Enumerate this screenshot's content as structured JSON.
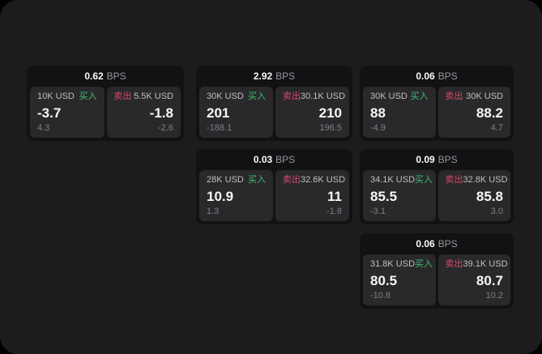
{
  "labels": {
    "bps_unit": "BPS",
    "buy": "买入",
    "sell": "卖出"
  },
  "colors": {
    "buy_green": "#3fbe72",
    "sell_red": "#d9486a",
    "surface": "#1c1c1e",
    "card": "#121214",
    "tile": "#29292b"
  },
  "cards": [
    {
      "row": 0,
      "col": 0,
      "bps": "0.62",
      "buy": {
        "notional": "10K USD",
        "price": "-3.7",
        "delta": "4.3"
      },
      "sell": {
        "notional": "5.5K USD",
        "price": "-1.8",
        "delta": "-2.6"
      }
    },
    {
      "row": 0,
      "col": 1,
      "bps": "2.92",
      "buy": {
        "notional": "30K USD",
        "price": "201",
        "delta": "-188.1"
      },
      "sell": {
        "notional": "30.1K USD",
        "price": "210",
        "delta": "196.5"
      }
    },
    {
      "row": 0,
      "col": 2,
      "bps": "0.06",
      "buy": {
        "notional": "30K USD",
        "price": "88",
        "delta": "-4.9"
      },
      "sell": {
        "notional": "30K USD",
        "price": "88.2",
        "delta": "4.7"
      }
    },
    {
      "row": 1,
      "col": 1,
      "bps": "0.03",
      "buy": {
        "notional": "28K USD",
        "price": "10.9",
        "delta": "1.3"
      },
      "sell": {
        "notional": "32.6K USD",
        "price": "11",
        "delta": "-1.8"
      }
    },
    {
      "row": 1,
      "col": 2,
      "bps": "0.09",
      "buy": {
        "notional": "34.1K USD",
        "price": "85.5",
        "delta": "-3.1"
      },
      "sell": {
        "notional": "32.8K USD",
        "price": "85.8",
        "delta": "3.0"
      }
    },
    {
      "row": 2,
      "col": 2,
      "bps": "0.06",
      "buy": {
        "notional": "31.8K USD",
        "price": "80.5",
        "delta": "-10.8"
      },
      "sell": {
        "notional": "39.1K USD",
        "price": "80.7",
        "delta": "10.2"
      }
    }
  ]
}
